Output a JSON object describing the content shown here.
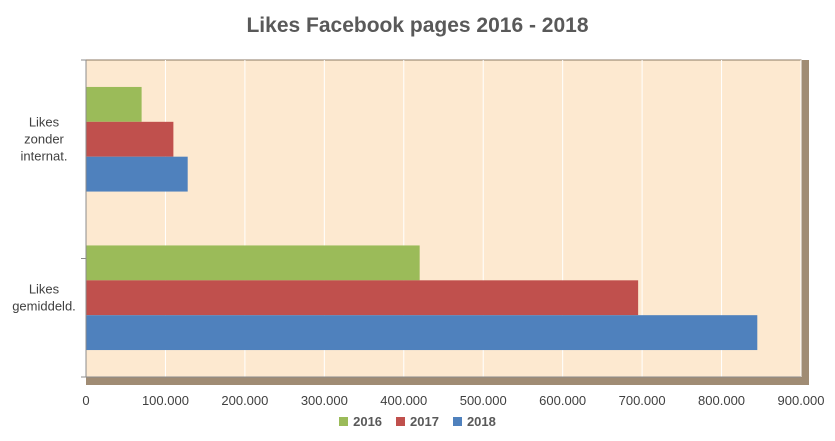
{
  "chart_data": {
    "type": "bar",
    "orientation": "horizontal",
    "title": "Likes Facebook pages 2016 - 2018",
    "categories": [
      [
        "Likes",
        "zonder",
        "internat."
      ],
      [
        "Likes",
        "gemiddeld."
      ]
    ],
    "series": [
      {
        "name": "2016",
        "color": "#9BBB59",
        "values": [
          70000,
          420000
        ]
      },
      {
        "name": "2017",
        "color": "#C0504D",
        "values": [
          110000,
          695000
        ]
      },
      {
        "name": "2018",
        "color": "#4F81BD",
        "values": [
          128000,
          845000
        ]
      }
    ],
    "xlim": [
      0,
      900000
    ],
    "xticks": [
      {
        "value": 0,
        "label": "0"
      },
      {
        "value": 100000,
        "label": "100.000"
      },
      {
        "value": 200000,
        "label": "200.000"
      },
      {
        "value": 300000,
        "label": "300.000"
      },
      {
        "value": 400000,
        "label": "400.000"
      },
      {
        "value": 500000,
        "label": "500.000"
      },
      {
        "value": 600000,
        "label": "600.000"
      },
      {
        "value": 700000,
        "label": "700.000"
      },
      {
        "value": 800000,
        "label": "800.000"
      },
      {
        "value": 900000,
        "label": "900.000"
      }
    ],
    "grid": true,
    "legend_position": "bottom",
    "plot_background": "#FDE9D0"
  }
}
